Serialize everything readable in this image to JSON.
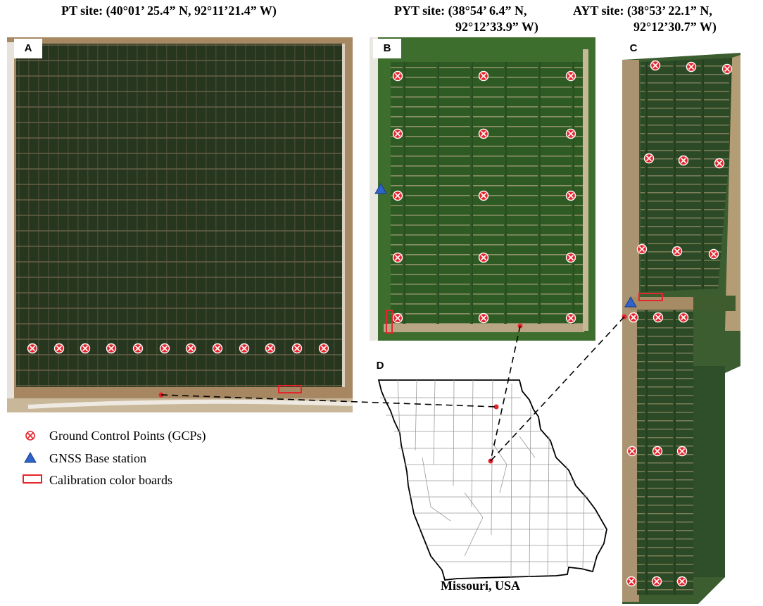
{
  "sites": {
    "pt": {
      "title": "PT site: (40°01’ 25.4” N, 92°11’21.4” W)",
      "panel": "A"
    },
    "pyt": {
      "title_line1": "PYT site: (38°54’ 6.4” N,",
      "title_line2": "92°12’33.9” W)",
      "panel": "B"
    },
    "ayt": {
      "title_line1": "AYT site: (38°53’ 22.1” N,",
      "title_line2": "92°12’30.7” W)",
      "panel": "C"
    }
  },
  "map": {
    "panel": "D",
    "caption": "Missouri, USA"
  },
  "legend": {
    "gcp": "Ground Control Points (GCPs)",
    "gnss": "GNSS Base station",
    "calib": "Calibration color boards"
  },
  "colors": {
    "field_dark": "#26361f",
    "field_b": "#2f5a24",
    "soil": "#9a7a55",
    "marker_red": "#e5252c",
    "gnss_blue": "#2e63c9"
  },
  "icons": {
    "gcp": "circled-x-icon",
    "gnss": "triangle-icon",
    "calib": "rectangle-outline-icon"
  }
}
